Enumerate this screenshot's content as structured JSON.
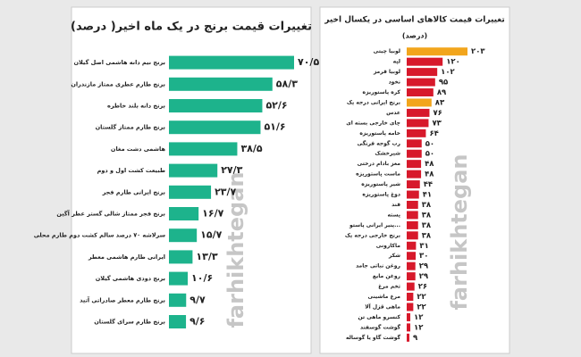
{
  "chart_data": [
    {
      "type": "bar",
      "orientation": "horizontal",
      "title": "تغییرات قیمت برنج در یک ماه اخیر( درصد)",
      "watermark": "farhikhtegan",
      "categories": [
        "برنج نیم دانه هاشمی اصل گیلان",
        "برنج طارم عطری ممتاز مازندران",
        "برنج دانه بلند خاطره",
        "برنج طارم ممتاز گلستان",
        "هاشمی دشت مغان",
        "طبیعت کشت اول و دوم",
        "برنج ایرانی طارم فجر",
        "برنج فجر ممتاز شالی گستر عطر آگین",
        "سرلاشه ۷۰ درصد سالم کشت دوم طارم محلی",
        "ایرانی طارم هاشمی معطر",
        "برنج دودی هاشمی گیلان",
        "برنج طارم معطر صادراتی آتید",
        "برنج طارم سرای گلستان"
      ],
      "values": [
        70.5,
        58.3,
        52.6,
        51.6,
        38.5,
        27.3,
        23.7,
        16.7,
        15.7,
        13.3,
        10.6,
        9.7,
        9.6
      ],
      "value_labels": [
        "۷۰/۵",
        "۵۸/۳",
        "۵۲/۶",
        "۵۱/۶",
        "۳۸/۵",
        "۲۷/۳",
        "۲۳/۷",
        "۱۶/۷",
        "۱۵/۷",
        "۱۳/۳",
        "۱۰/۶",
        "۹/۷",
        "۹/۶"
      ],
      "color": "#1db38c"
    },
    {
      "type": "bar",
      "orientation": "horizontal",
      "title": "تغییرات قیمت کالاهای اساسی در یکسال اخیر",
      "subtitle": "(درصد)",
      "watermark": "farhikhtegan",
      "categories": [
        "لوبیا چیتی",
        "لپه",
        "لوبیا قرمز",
        "نخود",
        "کره پاستوریزه",
        "برنج ایرانی درجه یک",
        "عدس",
        "چای خارجی بسته ای",
        "خامه پاستوریزه",
        "رب گوجه فرنگی",
        "شیرخشک",
        "مغز بادام درختی",
        "ماست پاستوریزه",
        "شیر پاستوریزه",
        "دوغ پاستوریزه",
        "قند",
        "پسته",
        "پنیر ایرانی پاستو...",
        "برنج خارجی درجه یک",
        "ماکارونی",
        "شکر",
        "روغن نباتی جامد",
        "روغن مایع",
        "تخم مرغ",
        "مرغ ماشینی",
        "ماهی قزل آلا",
        "کنسرو ماهی تن",
        "گوشت گوسفند",
        "گوشت گاو یا گوساله"
      ],
      "values": [
        203,
        120,
        102,
        95,
        89,
        83,
        76,
        73,
        64,
        50,
        50,
        48,
        48,
        44,
        41,
        38,
        38,
        38,
        38,
        31,
        30,
        29,
        29,
        26,
        22,
        22,
        12,
        12,
        9
      ],
      "value_labels": [
        "۲۰۳",
        "۱۲۰",
        "۱۰۲",
        "۹۵",
        "۸۹",
        "۸۳",
        "۷۶",
        "۷۳",
        "۶۴",
        "۵۰",
        "۵۰",
        "۴۸",
        "۴۸",
        "۴۴",
        "۴۱",
        "۳۸",
        "۳۸",
        "۳۸",
        "۳۸",
        "۳۱",
        "۳۰",
        "۲۹",
        "۲۹",
        "۲۶",
        "۲۲",
        "۲۲",
        "۱۲",
        "۱۲",
        "۹"
      ],
      "colors": [
        "#f2a51c",
        "#d7192b",
        "#d7192b",
        "#d7192b",
        "#d7192b",
        "#f2a51c",
        "#d7192b",
        "#d7192b",
        "#d7192b",
        "#d7192b",
        "#d7192b",
        "#d7192b",
        "#d7192b",
        "#d7192b",
        "#d7192b",
        "#d7192b",
        "#d7192b",
        "#d7192b",
        "#d7192b",
        "#d7192b",
        "#d7192b",
        "#d7192b",
        "#d7192b",
        "#d7192b",
        "#d7192b",
        "#d7192b",
        "#d7192b",
        "#d7192b",
        "#d7192b"
      ]
    }
  ]
}
